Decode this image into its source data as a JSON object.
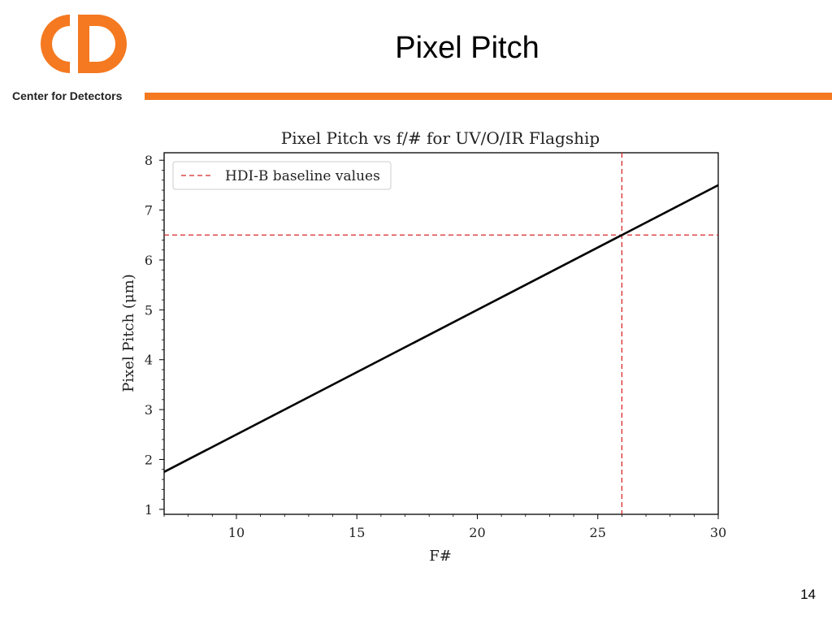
{
  "slide": {
    "title": "Pixel Pitch",
    "page_number": "14"
  },
  "logo": {
    "caption": "Center for Detectors",
    "mark_letters": "CD",
    "color": "#f47920"
  },
  "colors": {
    "accent": "#f47920",
    "baseline": "#d62728",
    "series": "#000000"
  },
  "chart_data": {
    "type": "line",
    "title": "Pixel Pitch vs f/# for UV/O/IR Flagship",
    "xlabel": "F#",
    "ylabel": "Pixel Pitch (μm)",
    "xlim": [
      7,
      30
    ],
    "ylim": [
      0.9,
      8.15
    ],
    "xticks": [
      10,
      15,
      20,
      25,
      30
    ],
    "yticks": [
      1,
      2,
      3,
      4,
      5,
      6,
      7,
      8
    ],
    "grid": false,
    "legend_position": "top-left",
    "series": [
      {
        "x": [
          7,
          30
        ],
        "y": [
          1.75,
          7.5
        ],
        "style": "solid",
        "color": "#000000"
      }
    ],
    "reference_lines": [
      {
        "name": "HDI-B baseline values",
        "orientation": "horizontal",
        "value": 6.5,
        "style": "dashed",
        "color": "#d62728"
      },
      {
        "orientation": "vertical",
        "value": 26,
        "style": "dashed",
        "color": "#d62728"
      }
    ],
    "legend": [
      "HDI-B baseline values"
    ]
  }
}
